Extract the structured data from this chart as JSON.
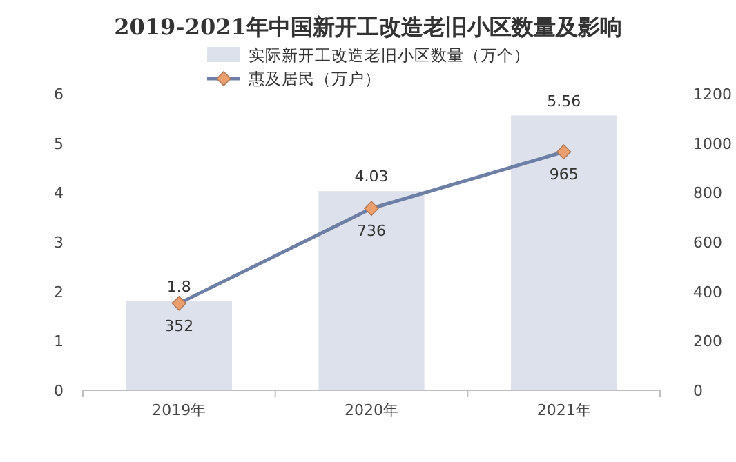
{
  "chart_data": {
    "type": "bar",
    "title": "2019-2021年中国新开工改造老旧小区数量及影响",
    "categories": [
      "2019年",
      "2020年",
      "2021年"
    ],
    "series": [
      {
        "name": "实际新开工改造老旧小区数量（万个）",
        "color": "#dde1ec",
        "values": [
          1.8,
          4.03,
          5.56
        ]
      },
      {
        "name": "惠及居民（万户）",
        "type": "line",
        "axis": "y2",
        "color": "#6e7fa6",
        "values": [
          352,
          736,
          965
        ]
      }
    ],
    "ylim": [
      0,
      6
    ],
    "yticks": [
      0,
      1,
      2,
      3,
      4,
      5,
      6
    ],
    "y2lim": [
      0,
      1200
    ],
    "y2ticks": [
      0,
      200,
      400,
      600,
      800,
      1000,
      1200
    ],
    "marker": "diamond",
    "legend": "top",
    "data_labels": true
  }
}
